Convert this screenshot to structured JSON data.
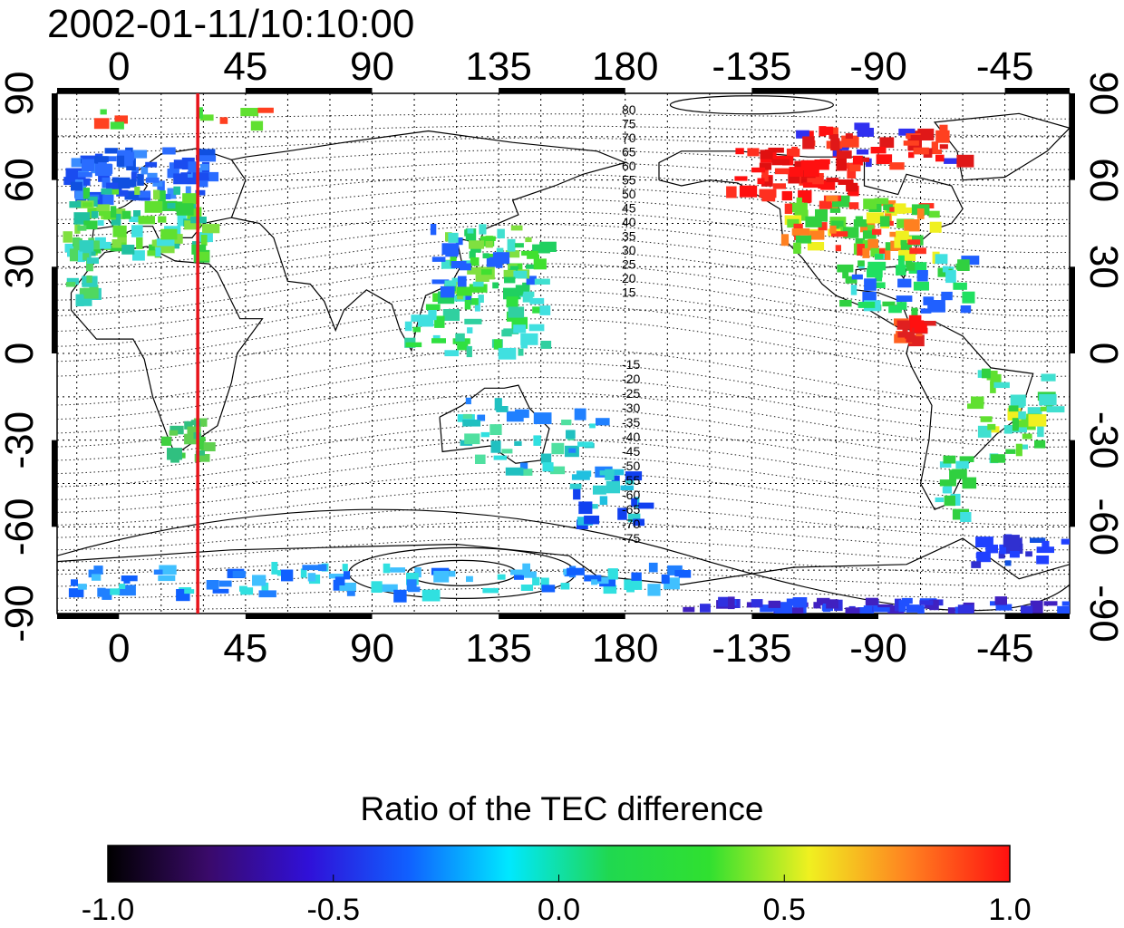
{
  "title": "2002-01-11/10:10:00",
  "map": {
    "projection": "equirectangular",
    "top_lon_ticks": [
      "0",
      "45",
      "90",
      "135",
      "180",
      "-135",
      "-90",
      "-45"
    ],
    "bottom_lon_ticks": [
      "0",
      "45",
      "90",
      "135",
      "180",
      "-135",
      "-90",
      "-45"
    ],
    "left_lat_ticks": [
      "90",
      "60",
      "30",
      "0",
      "-30",
      "-60",
      "-90"
    ],
    "right_lat_ticks": [
      "90",
      "60",
      "30",
      "0",
      "-30",
      "-60",
      "-90"
    ],
    "marker_line_longitude": 28,
    "marker_line_color": "#e8141b",
    "contour_labels_north": [
      "80",
      "75",
      "70",
      "65",
      "60",
      "55",
      "50",
      "45",
      "40",
      "35",
      "30",
      "25",
      "20",
      "15"
    ],
    "contour_labels_south": [
      "-15",
      "-20",
      "-25",
      "-30",
      "-35",
      "-40",
      "-45",
      "-50",
      "-55",
      "-60",
      "-65",
      "-70",
      "-75"
    ]
  },
  "colorbar": {
    "title": "Ratio of the TEC difference",
    "ticks": [
      "-1.0",
      "-0.5",
      "0.0",
      "0.5",
      "1.0"
    ],
    "colors": [
      "#000000",
      "#3a0a6a",
      "#3010d8",
      "#1060ff",
      "#00e8ff",
      "#20d850",
      "#30e030",
      "#f0f020",
      "#ff8020",
      "#ff1010"
    ]
  }
}
